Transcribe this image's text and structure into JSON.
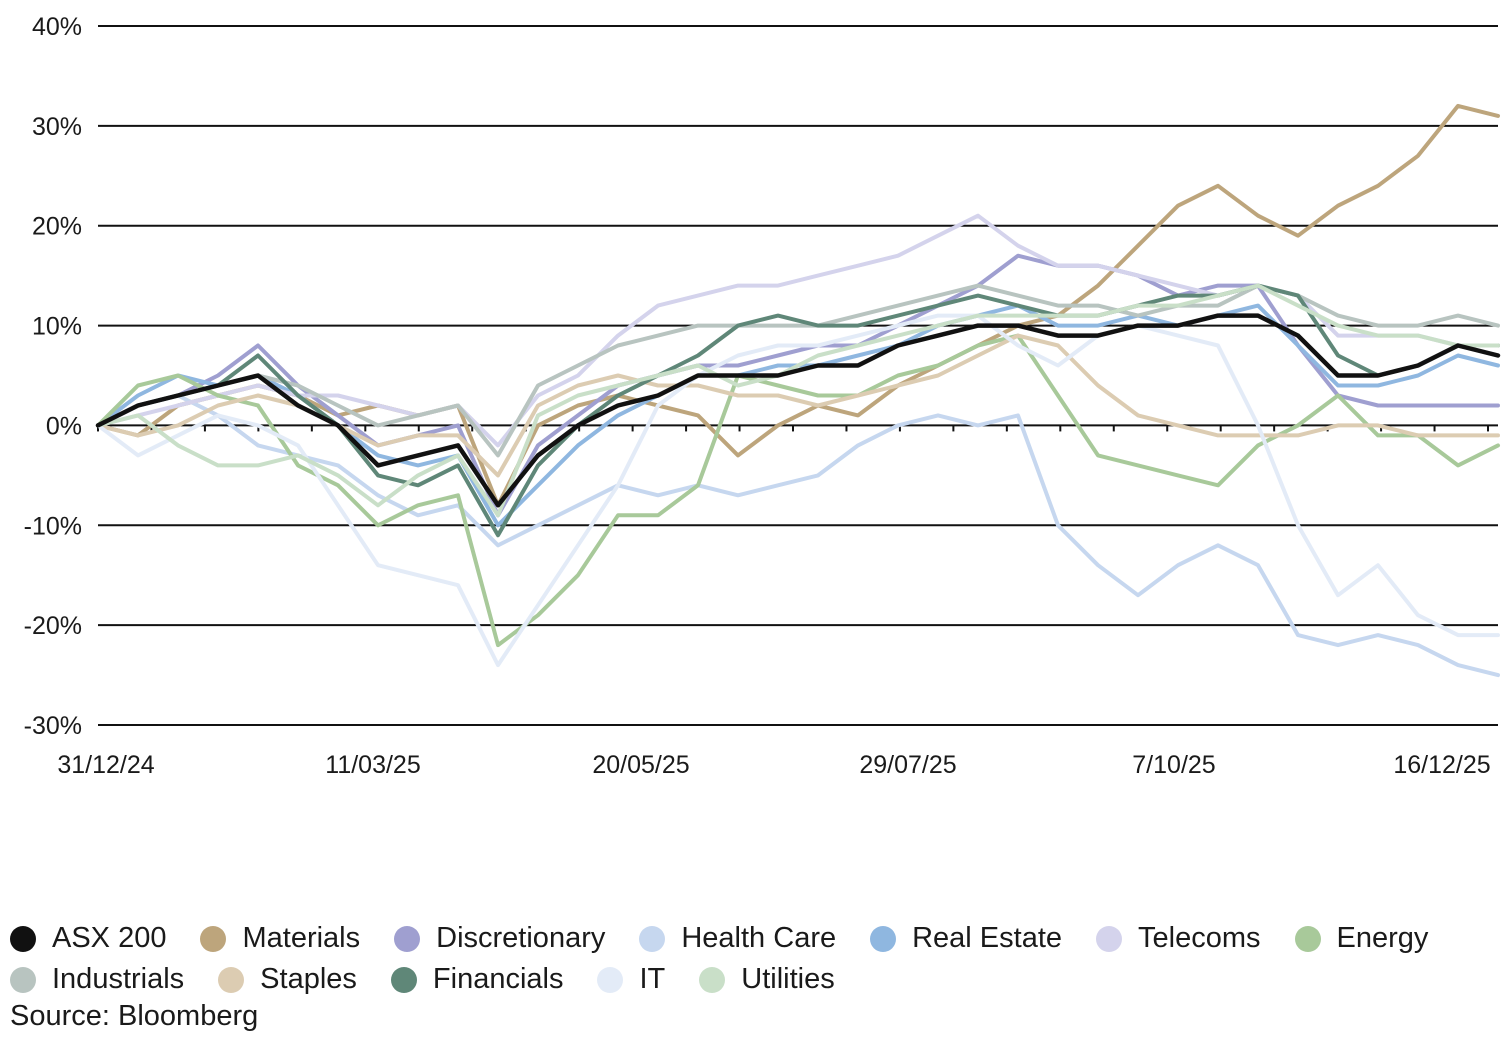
{
  "chart_data": {
    "type": "line",
    "title": "",
    "xlabel": "",
    "ylabel": "",
    "ylim": [
      -30,
      40
    ],
    "yticks": [
      40,
      30,
      20,
      10,
      0,
      -10,
      -20,
      -30
    ],
    "ytick_labels": [
      "40%",
      "30%",
      "20%",
      "10%",
      "0%",
      "-10%",
      "-20%",
      "-30%"
    ],
    "xtick_labels": [
      "31/12/24",
      "11/03/25",
      "20/05/25",
      "29/07/25",
      "7/10/25",
      "16/12/25"
    ],
    "grid": true,
    "legend_position": "bottom",
    "x_start": "31/12/24",
    "x_end": "end of Dec 2025",
    "sampling": "36 approximately evenly spaced dates",
    "series": [
      {
        "name": "ASX 200",
        "color": "#111111",
        "emphasis": true,
        "values": [
          0,
          2,
          3,
          4,
          5,
          2,
          0,
          -4,
          -3,
          -2,
          -8,
          -3,
          0,
          2,
          3,
          5,
          5,
          5,
          6,
          6,
          8,
          9,
          10,
          10,
          9,
          9,
          10,
          10,
          11,
          11,
          9,
          5,
          5,
          6,
          8,
          7
        ]
      },
      {
        "name": "Materials",
        "color": "#bda57c",
        "values": [
          0,
          -1,
          2,
          3,
          4,
          3,
          1,
          2,
          1,
          2,
          -8,
          0,
          2,
          3,
          2,
          1,
          -3,
          0,
          2,
          1,
          4,
          6,
          8,
          10,
          11,
          14,
          18,
          22,
          24,
          21,
          19,
          22,
          24,
          27,
          32,
          31
        ]
      },
      {
        "name": "Discretionary",
        "color": "#9f9fd0",
        "values": [
          0,
          2,
          3,
          5,
          8,
          4,
          1,
          -2,
          -1,
          0,
          -9,
          -2,
          1,
          4,
          5,
          6,
          6,
          7,
          8,
          8,
          10,
          12,
          14,
          17,
          16,
          16,
          15,
          13,
          14,
          14,
          8,
          3,
          2,
          2,
          2,
          2
        ]
      },
      {
        "name": "Health Care",
        "color": "#c6d7ef",
        "values": [
          0,
          2,
          3,
          1,
          -2,
          -3,
          -4,
          -7,
          -9,
          -8,
          -12,
          -10,
          -8,
          -6,
          -7,
          -6,
          -7,
          -6,
          -5,
          -2,
          0,
          1,
          0,
          1,
          -10,
          -14,
          -17,
          -14,
          -12,
          -14,
          -21,
          -22,
          -21,
          -22,
          -24,
          -25
        ]
      },
      {
        "name": "Real Estate",
        "color": "#8fb7e0",
        "values": [
          0,
          3,
          5,
          4,
          5,
          3,
          0,
          -3,
          -4,
          -3,
          -10,
          -6,
          -2,
          1,
          3,
          5,
          5,
          6,
          6,
          7,
          8,
          10,
          11,
          12,
          10,
          10,
          11,
          10,
          11,
          12,
          8,
          4,
          4,
          5,
          7,
          6
        ]
      },
      {
        "name": "Telecoms",
        "color": "#d4d3ec",
        "values": [
          0,
          1,
          2,
          3,
          4,
          3,
          3,
          2,
          1,
          2,
          -2,
          3,
          5,
          9,
          12,
          13,
          14,
          14,
          15,
          16,
          17,
          19,
          21,
          18,
          16,
          16,
          15,
          14,
          13,
          14,
          13,
          9,
          9,
          9,
          8,
          7
        ]
      },
      {
        "name": "Energy",
        "color": "#a8c99a",
        "values": [
          0,
          4,
          5,
          3,
          2,
          -4,
          -6,
          -10,
          -8,
          -7,
          -22,
          -19,
          -15,
          -9,
          -9,
          -6,
          5,
          4,
          3,
          3,
          5,
          6,
          8,
          9,
          3,
          -3,
          -4,
          -5,
          -6,
          -2,
          0,
          3,
          -1,
          -1,
          -4,
          -2
        ]
      },
      {
        "name": "Industrials",
        "color": "#b8c4c0",
        "values": [
          0,
          2,
          3,
          4,
          5,
          4,
          2,
          0,
          1,
          2,
          -3,
          4,
          6,
          8,
          9,
          10,
          10,
          10,
          10,
          11,
          12,
          13,
          14,
          13,
          12,
          12,
          11,
          12,
          12,
          14,
          13,
          11,
          10,
          10,
          11,
          10
        ]
      },
      {
        "name": "Staples",
        "color": "#dcccb2",
        "values": [
          0,
          -1,
          0,
          2,
          3,
          2,
          0,
          -2,
          -1,
          -1,
          -5,
          2,
          4,
          5,
          4,
          4,
          3,
          3,
          2,
          3,
          4,
          5,
          7,
          9,
          8,
          4,
          1,
          0,
          -1,
          -1,
          -1,
          0,
          0,
          -1,
          -1,
          -1
        ]
      },
      {
        "name": "Financials",
        "color": "#5f8778",
        "values": [
          0,
          2,
          3,
          4,
          7,
          3,
          0,
          -5,
          -6,
          -4,
          -11,
          -4,
          0,
          3,
          5,
          7,
          10,
          11,
          10,
          10,
          11,
          12,
          13,
          12,
          11,
          11,
          12,
          13,
          13,
          14,
          13,
          7,
          5,
          6,
          8,
          8
        ]
      },
      {
        "name": "IT",
        "color": "#e3ebf7",
        "values": [
          0,
          -3,
          -1,
          1,
          0,
          -2,
          -8,
          -14,
          -15,
          -16,
          -24,
          -18,
          -12,
          -6,
          2,
          5,
          7,
          8,
          8,
          9,
          10,
          11,
          11,
          8,
          6,
          9,
          10,
          9,
          8,
          0,
          -10,
          -17,
          -14,
          -19,
          -21,
          -21
        ]
      },
      {
        "name": "Utilities",
        "color": "#c9dfc8",
        "values": [
          0,
          1,
          -2,
          -4,
          -4,
          -3,
          -5,
          -8,
          -5,
          -3,
          -9,
          1,
          3,
          4,
          5,
          6,
          4,
          5,
          7,
          8,
          9,
          10,
          11,
          11,
          11,
          11,
          12,
          12,
          13,
          14,
          12,
          10,
          9,
          9,
          8,
          8
        ]
      }
    ]
  },
  "legend": {
    "rows": [
      [
        "ASX 200",
        "Materials",
        "Discretionary",
        "Health Care",
        "Real Estate",
        "Telecoms",
        "Energy"
      ],
      [
        "Industrials",
        "Staples",
        "Financials",
        "IT",
        "Utilities"
      ]
    ]
  },
  "source": "Source: Bloomberg"
}
